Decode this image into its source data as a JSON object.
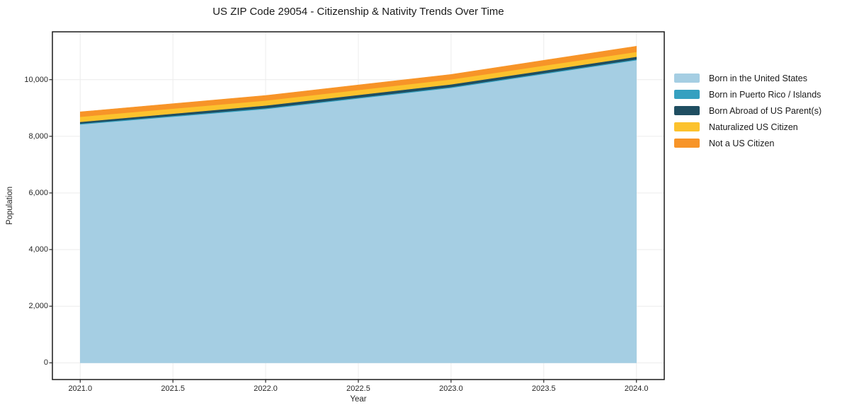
{
  "chart_data": {
    "type": "area",
    "stacked": true,
    "title": "US ZIP Code 29054 - Citizenship & Nativity Trends Over Time",
    "xlabel": "Year",
    "ylabel": "Population",
    "x": [
      2021,
      2022,
      2023,
      2024
    ],
    "series": [
      {
        "name": "Born in the United States",
        "color": "#a5cee3",
        "values": [
          8420,
          8965,
          9710,
          10690
        ]
      },
      {
        "name": "Born in Puerto Rico / Islands",
        "color": "#35a0c0",
        "values": [
          30,
          30,
          30,
          30
        ]
      },
      {
        "name": "Born Abroad of US Parent(s)",
        "color": "#1f4e61",
        "values": [
          60,
          95,
          95,
          90
        ]
      },
      {
        "name": "Naturalized US Citizen",
        "color": "#fcc22d",
        "values": [
          180,
          175,
          175,
          170
        ]
      },
      {
        "name": "Not a US Citizen",
        "color": "#f79428",
        "values": [
          175,
          175,
          175,
          200
        ]
      }
    ],
    "totals": [
      8865,
      9440,
      10185,
      11180
    ],
    "xlim": [
      2020.85,
      2024.15
    ],
    "ylim": [
      -590,
      11690
    ],
    "x_ticks": {
      "values": [
        2021.0,
        2021.5,
        2022.0,
        2022.5,
        2023.0,
        2023.5,
        2024.0
      ],
      "labels": [
        "2021.0",
        "2021.5",
        "2022.0",
        "2022.5",
        "2023.0",
        "2023.5",
        "2024.0"
      ]
    },
    "y_ticks": {
      "values": [
        0,
        2000,
        4000,
        6000,
        8000,
        10000
      ],
      "labels": [
        "0",
        "2,000",
        "4,000",
        "6,000",
        "8,000",
        "10,000"
      ]
    },
    "grid": true,
    "legend_position": "right-outside"
  },
  "colors": {
    "grid": "#ececec",
    "spine": "#1a1a1a",
    "tick": "#262626",
    "background": "#ffffff"
  }
}
